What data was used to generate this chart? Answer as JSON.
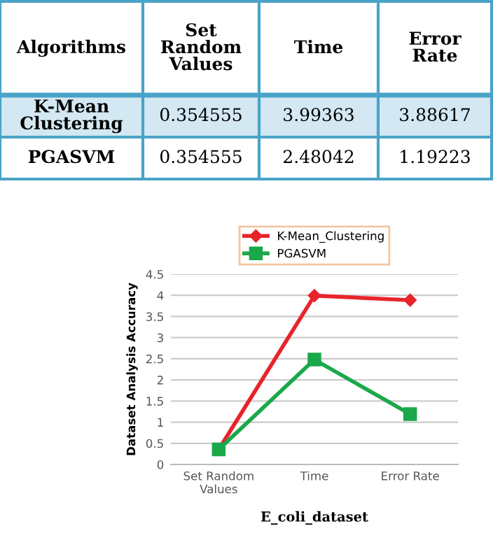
{
  "chart_data": {
    "type": "line",
    "categories": [
      "Set Random Values",
      "Time",
      "Error Rate"
    ],
    "series": [
      {
        "name": "K-Mean_Clustering",
        "color": "#e8242b",
        "marker": "diamond",
        "values": [
          0.354555,
          3.99363,
          3.88617
        ]
      },
      {
        "name": "PGASVM",
        "color": "#1aa84a",
        "marker": "square",
        "values": [
          0.354555,
          2.48042,
          1.19223
        ]
      }
    ],
    "annotations": [
      "Algorithms",
      "K-Mean Clustering",
      "PGASVM"
    ],
    "data_labels": true,
    "xlabel": "E_coli_dataset",
    "ylabel": "Dataset Analysis Accuracy",
    "ylim": [
      0,
      4.5
    ],
    "yticks": [
      0,
      0.5,
      1,
      1.5,
      2,
      2.5,
      3,
      3.5,
      4,
      4.5
    ],
    "grid": "y",
    "legend": "top",
    "line_style": "solid"
  }
}
